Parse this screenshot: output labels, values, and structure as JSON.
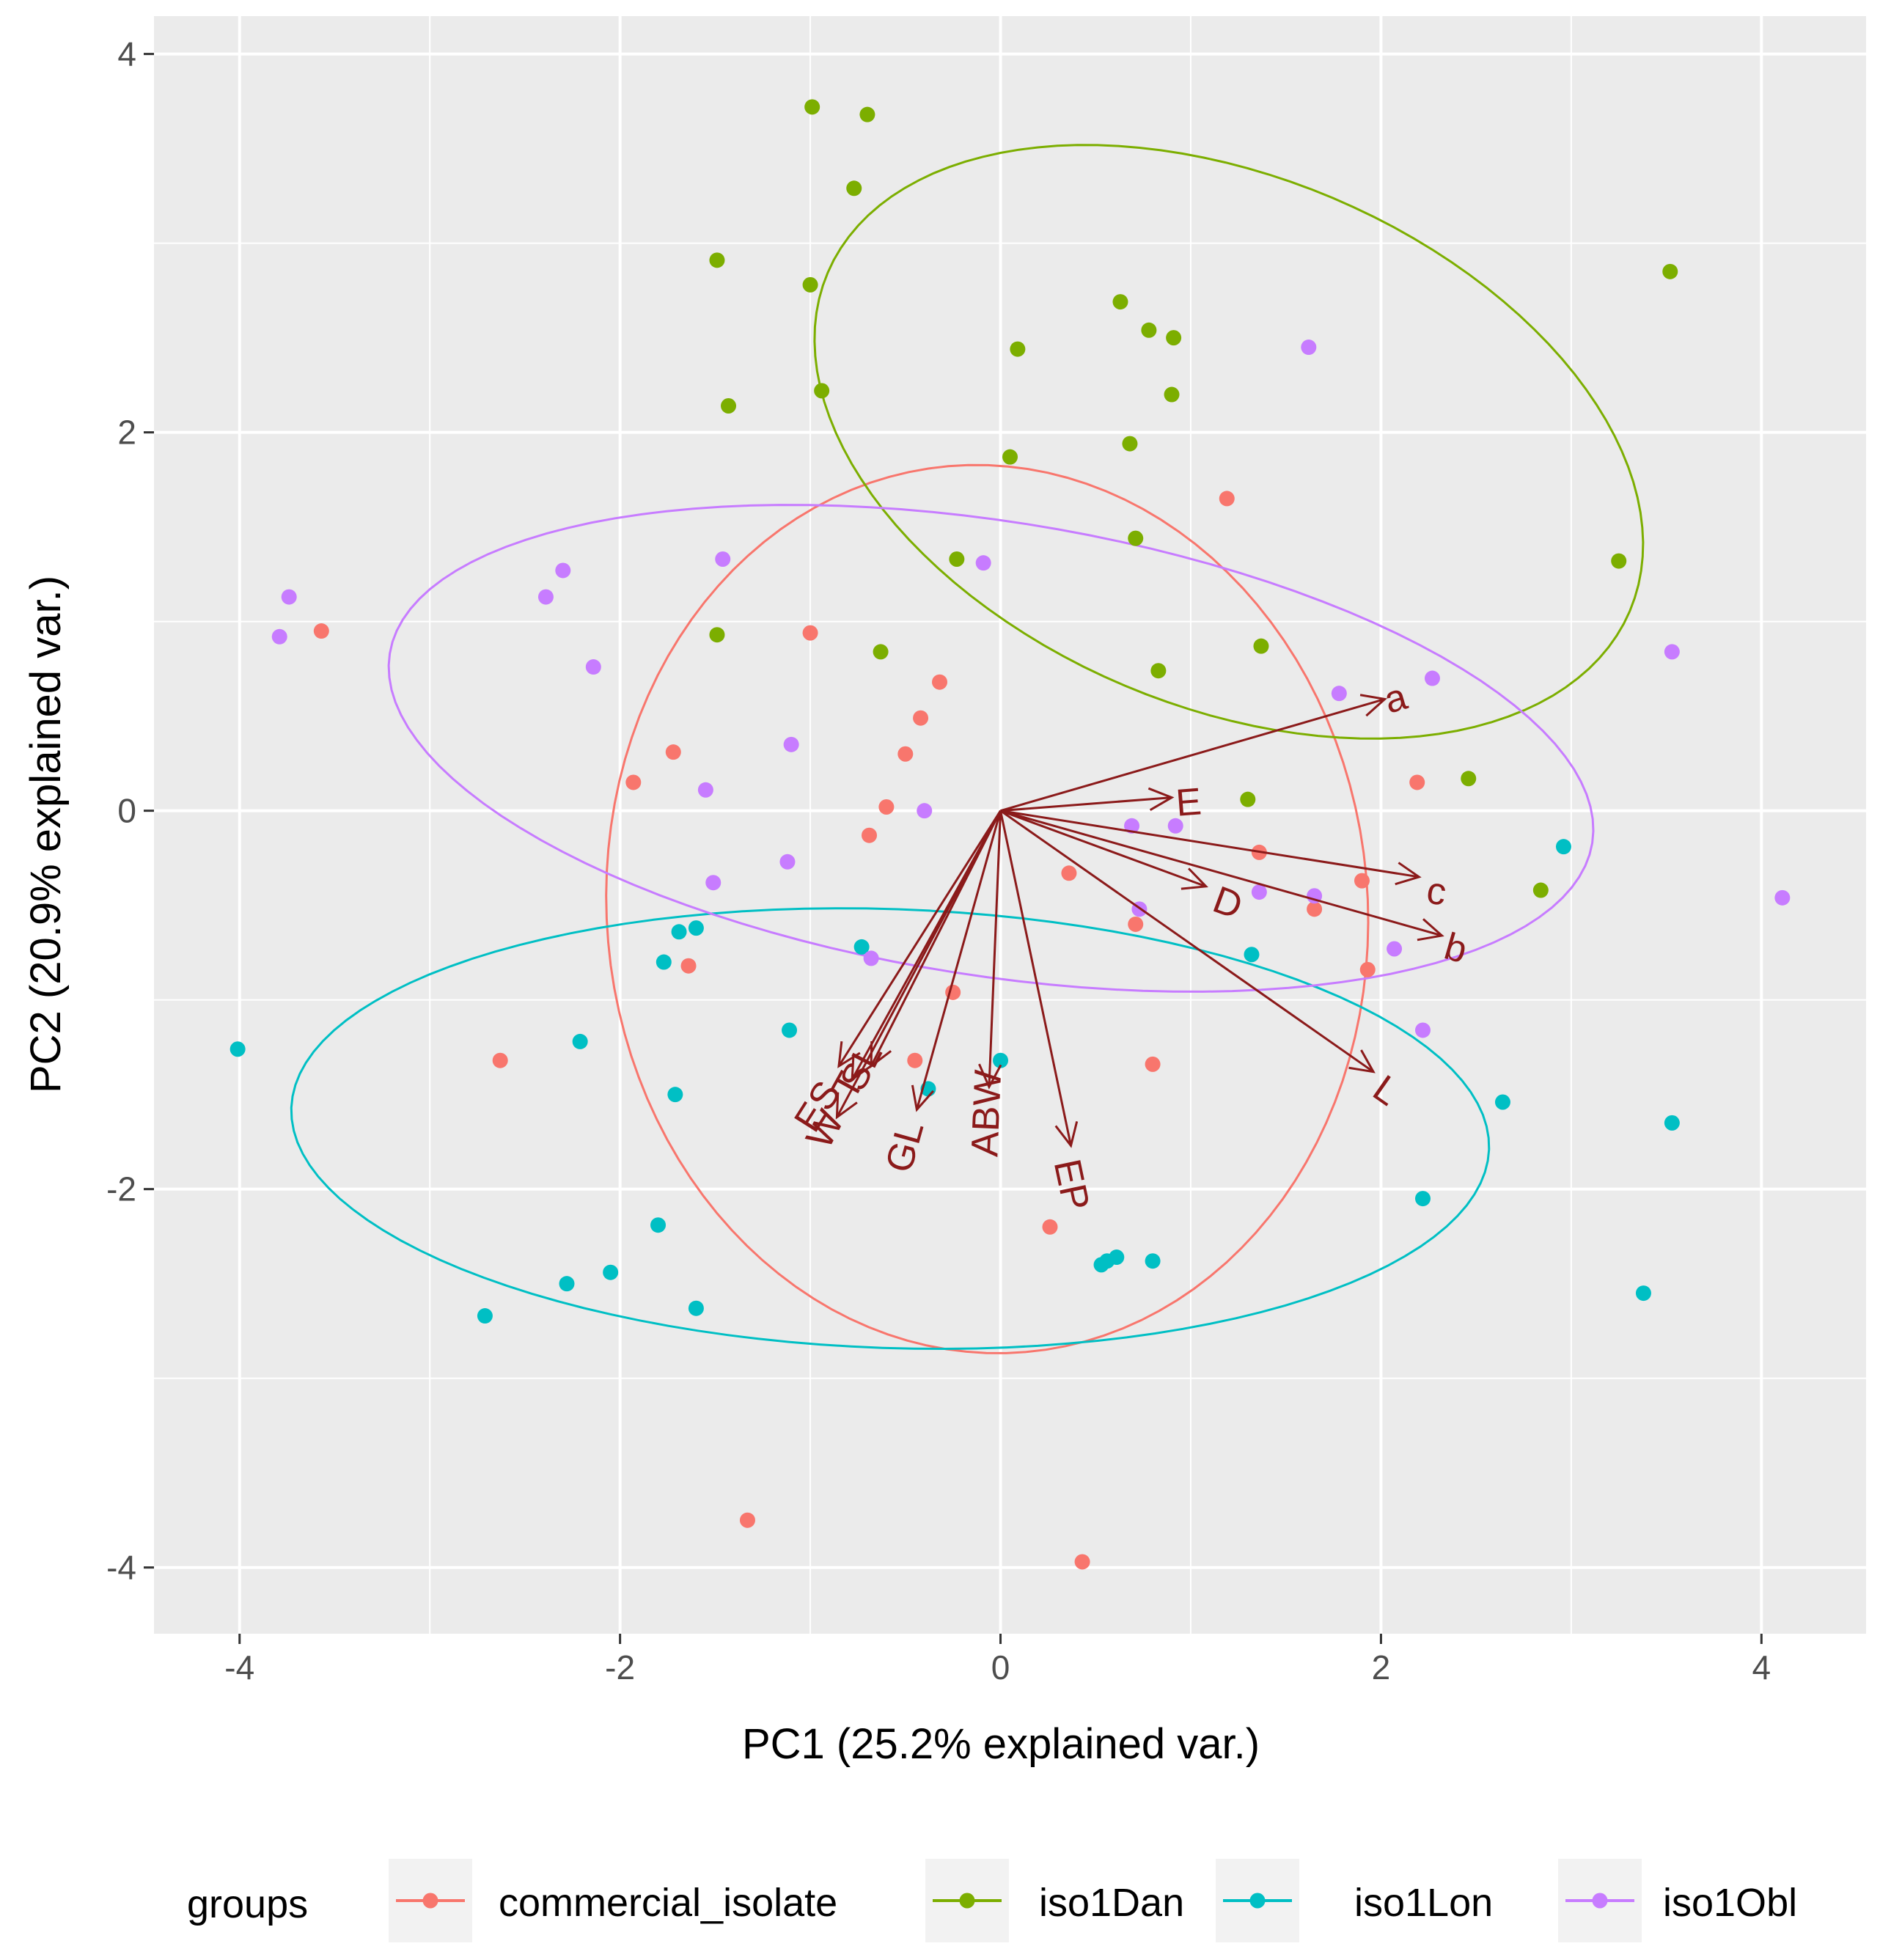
{
  "chart_data": {
    "type": "scatter",
    "subtype": "pca-biplot",
    "xlabel": "PC1 (25.2% explained var.)",
    "ylabel": "PC2 (20.9% explained var.)",
    "xlim": [
      -4.45,
      4.55
    ],
    "ylim": [
      -4.35,
      4.2
    ],
    "x_ticks": [
      -4,
      -2,
      0,
      2,
      4
    ],
    "y_ticks": [
      -4,
      -2,
      0,
      2,
      4
    ],
    "x_tick_labels": [
      "-4",
      "-2",
      "0",
      "2",
      "4"
    ],
    "y_tick_labels": [
      "-4",
      "-2",
      "0",
      "2",
      "4"
    ],
    "grid": true,
    "legend": {
      "title": "groups",
      "position": "bottom",
      "entries": [
        "commercial_isolate",
        "iso1Dan",
        "iso1Lon",
        "iso1Obl"
      ]
    },
    "series": [
      {
        "name": "commercial_isolate",
        "color": "#f8766d",
        "points": [
          [
            -3.57,
            0.95
          ],
          [
            -2.63,
            -1.32
          ],
          [
            -1.93,
            0.15
          ],
          [
            -1.72,
            0.31
          ],
          [
            -1.64,
            -0.82
          ],
          [
            -1.33,
            -3.75
          ],
          [
            -1.0,
            0.94
          ],
          [
            -0.69,
            -0.13
          ],
          [
            -0.6,
            0.02
          ],
          [
            -0.5,
            0.3
          ],
          [
            -0.42,
            0.49
          ],
          [
            -0.32,
            0.68
          ],
          [
            -0.45,
            -1.32
          ],
          [
            -0.25,
            -0.96
          ],
          [
            0.26,
            -2.2
          ],
          [
            0.36,
            -0.33
          ],
          [
            0.43,
            -3.97
          ],
          [
            0.71,
            -0.6
          ],
          [
            0.8,
            -1.34
          ],
          [
            1.19,
            1.65
          ],
          [
            1.36,
            -0.22
          ],
          [
            1.65,
            -0.52
          ],
          [
            1.9,
            -0.37
          ],
          [
            1.93,
            -0.84
          ],
          [
            2.19,
            0.15
          ]
        ]
      },
      {
        "name": "iso1Dan",
        "color": "#7cae00",
        "points": [
          [
            -0.99,
            3.72
          ],
          [
            -0.7,
            3.68
          ],
          [
            -0.77,
            3.29
          ],
          [
            -1.49,
            2.91
          ],
          [
            -1.0,
            2.78
          ],
          [
            -0.94,
            2.22
          ],
          [
            -1.43,
            2.14
          ],
          [
            0.09,
            2.44
          ],
          [
            0.05,
            1.87
          ],
          [
            0.63,
            2.69
          ],
          [
            0.78,
            2.54
          ],
          [
            0.91,
            2.5
          ],
          [
            0.9,
            2.2
          ],
          [
            0.68,
            1.94
          ],
          [
            0.71,
            1.44
          ],
          [
            -0.23,
            1.33
          ],
          [
            -1.49,
            0.93
          ],
          [
            -0.63,
            0.84
          ],
          [
            0.83,
            0.74
          ],
          [
            1.37,
            0.87
          ],
          [
            1.3,
            0.06
          ],
          [
            2.46,
            0.17
          ],
          [
            2.84,
            -0.42
          ],
          [
            3.25,
            1.32
          ],
          [
            3.52,
            2.85
          ]
        ]
      },
      {
        "name": "iso1Lon",
        "color": "#00bfc4",
        "points": [
          [
            -4.01,
            -1.26
          ],
          [
            -2.71,
            -2.67
          ],
          [
            -2.28,
            -2.5
          ],
          [
            -2.21,
            -1.22
          ],
          [
            -2.05,
            -2.44
          ],
          [
            -1.8,
            -2.19
          ],
          [
            -1.77,
            -0.8
          ],
          [
            -1.71,
            -1.5
          ],
          [
            -1.69,
            -0.64
          ],
          [
            -1.6,
            -2.63
          ],
          [
            -1.6,
            -0.62
          ],
          [
            -1.11,
            -1.16
          ],
          [
            -0.73,
            -0.72
          ],
          [
            -0.38,
            -1.47
          ],
          [
            0.0,
            -1.32
          ],
          [
            0.53,
            -2.4
          ],
          [
            0.56,
            -2.38
          ],
          [
            0.61,
            -2.36
          ],
          [
            0.8,
            -2.38
          ],
          [
            1.32,
            -0.76
          ],
          [
            2.22,
            -2.05
          ],
          [
            2.64,
            -1.54
          ],
          [
            2.96,
            -0.19
          ],
          [
            3.38,
            -2.55
          ],
          [
            3.53,
            -1.65
          ]
        ]
      },
      {
        "name": "iso1Obl",
        "color": "#c77cff",
        "points": [
          [
            -3.79,
            0.92
          ],
          [
            -3.74,
            1.13
          ],
          [
            -2.39,
            1.13
          ],
          [
            -2.3,
            1.27
          ],
          [
            -2.14,
            0.76
          ],
          [
            -1.55,
            0.11
          ],
          [
            -1.51,
            -0.38
          ],
          [
            -1.46,
            1.33
          ],
          [
            -1.1,
            0.35
          ],
          [
            -1.12,
            -0.27
          ],
          [
            -0.68,
            -0.78
          ],
          [
            -0.4,
            0.0
          ],
          [
            -0.09,
            1.31
          ],
          [
            0.69,
            -0.08
          ],
          [
            0.92,
            -0.08
          ],
          [
            0.73,
            -0.52
          ],
          [
            1.36,
            -0.43
          ],
          [
            1.62,
            2.45
          ],
          [
            1.65,
            -0.45
          ],
          [
            1.78,
            0.62
          ],
          [
            2.07,
            -0.73
          ],
          [
            2.27,
            0.7
          ],
          [
            2.22,
            -1.16
          ],
          [
            3.53,
            0.84
          ],
          [
            4.11,
            -0.46
          ]
        ]
      }
    ],
    "ellipses": [
      {
        "group": "commercial_isolate",
        "cx": -0.07,
        "cy": -0.52,
        "rx": 2.35,
        "ry": 2.0,
        "angle_deg": -85
      },
      {
        "group": "iso1Dan",
        "cx": 1.2,
        "cy": 1.95,
        "rx": 2.29,
        "ry": 1.4,
        "angle_deg": -23
      },
      {
        "group": "iso1Lon",
        "cx": -0.58,
        "cy": -1.68,
        "rx": 3.15,
        "ry": 1.16,
        "angle_deg": -2
      },
      {
        "group": "iso1Obl",
        "cx": -0.05,
        "cy": 0.33,
        "rx": 3.2,
        "ry": 1.2,
        "angle_deg": -9
      }
    ],
    "loadings": {
      "color": "#8b1a1a",
      "origin": [
        0,
        0
      ],
      "vectors": [
        {
          "name": "a",
          "x": 2.02,
          "y": 0.59,
          "label": [
            2.08,
            0.58
          ]
        },
        {
          "name": "E",
          "x": 0.9,
          "y": 0.07,
          "label": [
            0.99,
            0.03
          ]
        },
        {
          "name": "c",
          "x": 2.2,
          "y": -0.35,
          "label": [
            2.29,
            -0.44
          ]
        },
        {
          "name": "D",
          "x": 1.08,
          "y": -0.4,
          "label": [
            1.19,
            -0.5
          ]
        },
        {
          "name": "b",
          "x": 2.32,
          "y": -0.66,
          "label": [
            2.39,
            -0.74
          ]
        },
        {
          "name": "L",
          "x": 1.96,
          "y": -1.38,
          "label": [
            2.02,
            -1.49
          ]
        },
        {
          "name": "EP",
          "x": 0.37,
          "y": -1.77,
          "label": [
            0.36,
            -1.98
          ]
        },
        {
          "name": "ABW",
          "x": -0.06,
          "y": -1.46,
          "label": [
            -0.06,
            -1.6
          ]
        },
        {
          "name": "GL",
          "x": -0.44,
          "y": -1.58,
          "label": [
            -0.49,
            -1.78
          ]
        },
        {
          "name": "SL",
          "x": -0.68,
          "y": -1.35,
          "label": [
            -0.72,
            -1.36
          ]
        },
        {
          "name": "T",
          "x": -0.78,
          "y": -1.42,
          "label": [
            -0.79,
            -1.46
          ]
        },
        {
          "name": "ES",
          "x": -0.85,
          "y": -1.35,
          "label": [
            -0.95,
            -1.57
          ]
        },
        {
          "name": "W",
          "x": -0.86,
          "y": -1.62,
          "label": [
            -0.91,
            -1.69
          ]
        }
      ]
    }
  }
}
